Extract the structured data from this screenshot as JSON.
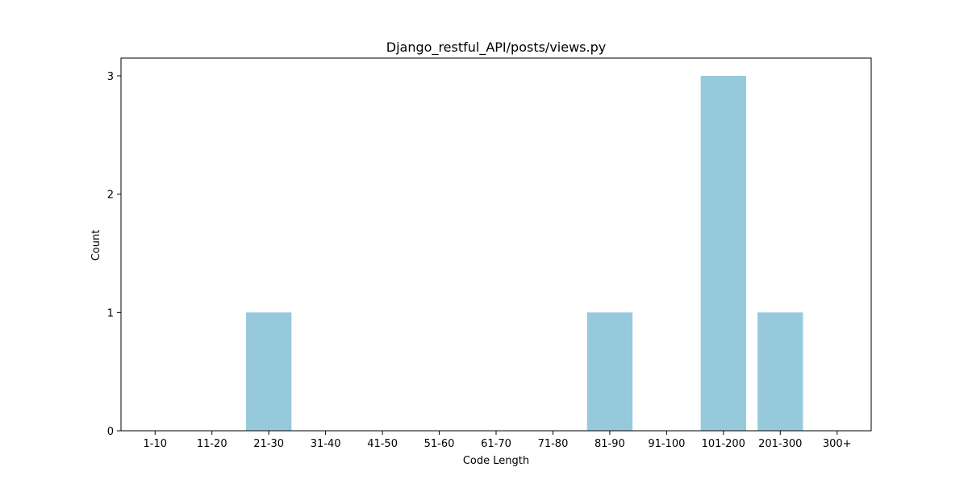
{
  "chart_data": {
    "type": "bar",
    "title": "Django_restful_API/posts/views.py",
    "xlabel": "Code Length",
    "ylabel": "Count",
    "categories": [
      "1-10",
      "11-20",
      "21-30",
      "31-40",
      "41-50",
      "51-60",
      "61-70",
      "71-80",
      "81-90",
      "91-100",
      "101-200",
      "201-300",
      "300+"
    ],
    "values": [
      0,
      0,
      1,
      0,
      0,
      0,
      0,
      0,
      1,
      0,
      3,
      1,
      0
    ],
    "ylim": [
      0,
      3.15
    ],
    "yticks": [
      0,
      1,
      2,
      3
    ],
    "grid": false,
    "legend": "none",
    "colors": {
      "bar": "#96c9dc",
      "axis": "#000000",
      "background": "#ffffff"
    }
  }
}
